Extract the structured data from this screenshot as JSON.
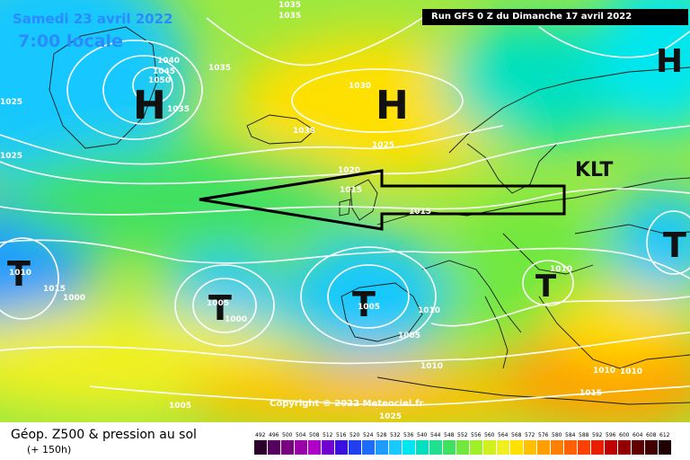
{
  "header": {
    "date": "Samedi 23 avril 2022",
    "time": "7:00 locale",
    "run": "Run GFS 0 Z du Dimanche 17 avril 2022"
  },
  "copyright": "Copyright © 2022 Meteociel.fr",
  "footer": {
    "title": "Géop. Z500 & pression au sol",
    "lead": "(+ 150h)"
  },
  "legend": {
    "values": [
      "492",
      "496",
      "500",
      "504",
      "508",
      "512",
      "516",
      "520",
      "524",
      "528",
      "532",
      "536",
      "540",
      "544",
      "548",
      "552",
      "556",
      "560",
      "564",
      "568",
      "572",
      "576",
      "580",
      "584",
      "588",
      "592",
      "596",
      "600",
      "604",
      "608",
      "612"
    ],
    "colors": [
      "#2b002b",
      "#55005f",
      "#7a0080",
      "#9a00a8",
      "#b000c8",
      "#7000d0",
      "#3a10e0",
      "#2040f0",
      "#1e6cff",
      "#1e9bff",
      "#18c8ff",
      "#00e6f0",
      "#00e0c0",
      "#20e090",
      "#40e060",
      "#70e840",
      "#a0f028",
      "#d0f020",
      "#f0f020",
      "#ffe000",
      "#ffc000",
      "#ffa000",
      "#ff8000",
      "#ff6000",
      "#ff4000",
      "#e82000",
      "#c00000",
      "#900000",
      "#600000",
      "#400000",
      "#200000"
    ]
  },
  "pressure_systems": [
    {
      "type": "H"
    },
    {
      "type": "H"
    },
    {
      "type": "H"
    },
    {
      "type": "T"
    },
    {
      "type": "T"
    },
    {
      "type": "T"
    },
    {
      "type": "T"
    },
    {
      "type": "T"
    },
    {
      "type": "KLT"
    }
  ],
  "isobar_labels": [
    "1035",
    "1035",
    "1040",
    "1045",
    "1050",
    "1035",
    "1025",
    "1025",
    "1035",
    "1035",
    "1030",
    "1025",
    "1020",
    "1015",
    "1015",
    "1010",
    "1015",
    "1000",
    "1005",
    "1000",
    "1005",
    "1010",
    "1005",
    "1010",
    "1010",
    "1010",
    "1010",
    "1015",
    "1005",
    "1025"
  ]
}
